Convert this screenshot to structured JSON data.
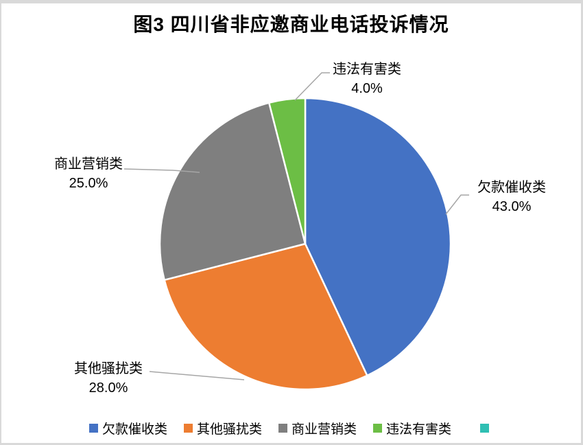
{
  "chart_data": {
    "type": "pie",
    "title": "图3 四川省非应邀商业电话投诉情况",
    "categories": [
      "欠款催收类",
      "其他骚扰类",
      "商业营销类",
      "违法有害类"
    ],
    "values": [
      43.0,
      28.0,
      25.0,
      4.0
    ],
    "unit": "percent",
    "colors": [
      "#4472C4",
      "#ED7D31",
      "#7F7F7F",
      "#6CBE45"
    ],
    "start_angle_deg": 0,
    "direction": "clockwise",
    "legend_position": "bottom",
    "leader_line_color": "#A6A6A6",
    "data_labels": [
      {
        "name": "欠款催收类",
        "pct": "43.0%"
      },
      {
        "name": "其他骚扰类",
        "pct": "28.0%"
      },
      {
        "name": "商业营销类",
        "pct": "25.0%"
      },
      {
        "name": "违法有害类",
        "pct": "4.0%"
      }
    ]
  },
  "legend": {
    "items": [
      {
        "label": "欠款催收类",
        "color": "#4472C4"
      },
      {
        "label": "其他骚扰类",
        "color": "#ED7D31"
      },
      {
        "label": "商业营销类",
        "color": "#7F7F7F"
      },
      {
        "label": "违法有害类",
        "color": "#6CBE45"
      },
      {
        "label": "",
        "color": "#2FBFB3"
      }
    ]
  },
  "page": {
    "background": "#FFFFFF",
    "border_color": "#D9D9D9"
  }
}
